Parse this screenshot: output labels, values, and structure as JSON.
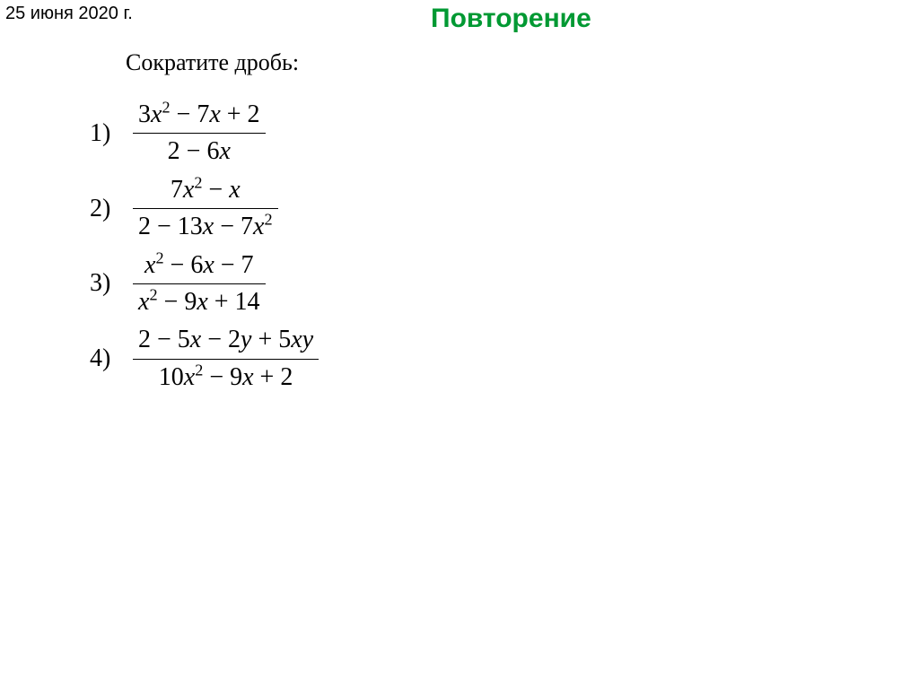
{
  "date": "25 июня 2020 г.",
  "title": "Повторение",
  "instruction": "Сократите дробь:",
  "title_color": "#009933",
  "problems": [
    {
      "label": "1)",
      "numerator": "3<span class='it'>x</span><sup>2</sup> − 7<span class='it'>x</span> + 2",
      "denominator": "2 − 6<span class='it'>x</span>"
    },
    {
      "label": "2)",
      "numerator": "7<span class='it'>x</span><sup>2</sup> − <span class='it'>x</span>",
      "denominator": "2 − 13<span class='it'>x</span> − 7<span class='it'>x</span><sup>2</sup>"
    },
    {
      "label": "3)",
      "numerator": "<span class='it'>x</span><sup>2</sup> − 6<span class='it'>x</span> − 7",
      "denominator": "<span class='it'>x</span><sup>2</sup> − 9<span class='it'>x</span> + 14"
    },
    {
      "label": "4)",
      "numerator": "2 − 5<span class='it'>x</span> − 2<span class='it'>y</span> + 5<span class='it'>xy</span>",
      "denominator": "10<span class='it'>x</span><sup>2</sup> − 9<span class='it'>x</span> + 2"
    }
  ]
}
